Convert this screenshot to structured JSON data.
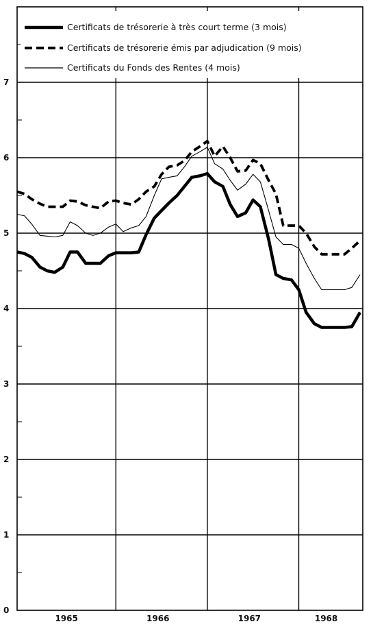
{
  "chart_data": {
    "type": "line",
    "title": "",
    "xlabel": "",
    "ylabel": "",
    "ylim": [
      0,
      7
    ],
    "y_ticks": [
      0,
      1,
      2,
      3,
      4,
      5,
      6,
      7
    ],
    "x_range": [
      1964.92,
      1968.42
    ],
    "x_tick_labels": [
      "1965",
      "1966",
      "1967",
      "1968"
    ],
    "x_tick_positions": [
      1965.5,
      1966.5,
      1967.5,
      1968.5
    ],
    "grid": true,
    "legend_placement": "top-left",
    "series": [
      {
        "name": "Certificats de trésorerie à très court terme (3 mois)",
        "style": "solid-thick",
        "color": "#000000",
        "points": [
          [
            1964.92,
            4.75
          ],
          [
            1965.0,
            4.73
          ],
          [
            1965.08,
            4.68
          ],
          [
            1965.17,
            4.55
          ],
          [
            1965.25,
            4.5
          ],
          [
            1965.33,
            4.48
          ],
          [
            1965.42,
            4.55
          ],
          [
            1965.5,
            4.75
          ],
          [
            1965.58,
            4.75
          ],
          [
            1965.67,
            4.6
          ],
          [
            1965.75,
            4.6
          ],
          [
            1965.83,
            4.6
          ],
          [
            1965.92,
            4.7
          ],
          [
            1966.0,
            4.74
          ],
          [
            1966.08,
            4.74
          ],
          [
            1966.17,
            4.74
          ],
          [
            1966.25,
            4.75
          ],
          [
            1966.33,
            4.98
          ],
          [
            1966.42,
            5.2
          ],
          [
            1966.5,
            5.3
          ],
          [
            1966.58,
            5.4
          ],
          [
            1966.67,
            5.5
          ],
          [
            1966.75,
            5.62
          ],
          [
            1966.83,
            5.74
          ],
          [
            1966.92,
            5.76
          ],
          [
            1967.0,
            5.79
          ],
          [
            1967.08,
            5.68
          ],
          [
            1967.17,
            5.62
          ],
          [
            1967.25,
            5.38
          ],
          [
            1967.33,
            5.22
          ],
          [
            1967.42,
            5.27
          ],
          [
            1967.5,
            5.44
          ],
          [
            1967.58,
            5.35
          ],
          [
            1967.67,
            4.92
          ],
          [
            1967.75,
            4.45
          ],
          [
            1967.83,
            4.4
          ],
          [
            1967.92,
            4.38
          ],
          [
            1968.0,
            4.25
          ],
          [
            1968.08,
            3.95
          ],
          [
            1968.17,
            3.8
          ],
          [
            1968.25,
            3.75
          ],
          [
            1968.33,
            3.75
          ],
          [
            1968.42,
            3.75
          ],
          [
            1968.5,
            3.75
          ],
          [
            1968.58,
            3.76
          ],
          [
            1968.67,
            3.95
          ]
        ]
      },
      {
        "name": "Certificats de trésorerie émis par adjudication (9 mois)",
        "style": "dashed-thick",
        "color": "#000000",
        "points": [
          [
            1964.92,
            5.55
          ],
          [
            1965.0,
            5.52
          ],
          [
            1965.08,
            5.45
          ],
          [
            1965.17,
            5.39
          ],
          [
            1965.25,
            5.35
          ],
          [
            1965.33,
            5.35
          ],
          [
            1965.42,
            5.35
          ],
          [
            1965.5,
            5.43
          ],
          [
            1965.58,
            5.42
          ],
          [
            1965.67,
            5.37
          ],
          [
            1965.75,
            5.35
          ],
          [
            1965.83,
            5.33
          ],
          [
            1965.92,
            5.42
          ],
          [
            1966.0,
            5.43
          ],
          [
            1966.08,
            5.4
          ],
          [
            1966.17,
            5.38
          ],
          [
            1966.25,
            5.45
          ],
          [
            1966.33,
            5.55
          ],
          [
            1966.42,
            5.62
          ],
          [
            1966.5,
            5.78
          ],
          [
            1966.58,
            5.88
          ],
          [
            1966.67,
            5.9
          ],
          [
            1966.75,
            5.96
          ],
          [
            1966.83,
            6.08
          ],
          [
            1966.92,
            6.15
          ],
          [
            1967.0,
            6.22
          ],
          [
            1967.08,
            6.02
          ],
          [
            1967.17,
            6.15
          ],
          [
            1967.25,
            6.0
          ],
          [
            1967.33,
            5.82
          ],
          [
            1967.42,
            5.83
          ],
          [
            1967.5,
            5.97
          ],
          [
            1967.58,
            5.92
          ],
          [
            1967.67,
            5.7
          ],
          [
            1967.75,
            5.52
          ],
          [
            1967.83,
            5.1
          ],
          [
            1967.92,
            5.1
          ],
          [
            1968.0,
            5.1
          ],
          [
            1968.08,
            5.0
          ],
          [
            1968.17,
            4.82
          ],
          [
            1968.25,
            4.72
          ],
          [
            1968.33,
            4.72
          ],
          [
            1968.42,
            4.72
          ],
          [
            1968.5,
            4.72
          ],
          [
            1968.58,
            4.8
          ],
          [
            1968.67,
            4.9
          ]
        ]
      },
      {
        "name": "Certificats du Fonds des Rentes (4 mois)",
        "style": "solid-thin",
        "color": "#000000",
        "points": [
          [
            1964.92,
            5.25
          ],
          [
            1965.0,
            5.23
          ],
          [
            1965.08,
            5.12
          ],
          [
            1965.17,
            4.97
          ],
          [
            1965.25,
            4.96
          ],
          [
            1965.33,
            4.95
          ],
          [
            1965.42,
            4.97
          ],
          [
            1965.5,
            5.15
          ],
          [
            1965.58,
            5.1
          ],
          [
            1965.67,
            5.0
          ],
          [
            1965.75,
            4.97
          ],
          [
            1965.83,
            5.0
          ],
          [
            1965.92,
            5.08
          ],
          [
            1966.0,
            5.12
          ],
          [
            1966.08,
            5.02
          ],
          [
            1966.17,
            5.07
          ],
          [
            1966.25,
            5.1
          ],
          [
            1966.33,
            5.22
          ],
          [
            1966.42,
            5.5
          ],
          [
            1966.5,
            5.72
          ],
          [
            1966.58,
            5.74
          ],
          [
            1966.67,
            5.76
          ],
          [
            1966.75,
            5.88
          ],
          [
            1966.83,
            6.02
          ],
          [
            1966.92,
            6.08
          ],
          [
            1967.0,
            6.14
          ],
          [
            1967.08,
            5.92
          ],
          [
            1967.17,
            5.85
          ],
          [
            1967.25,
            5.7
          ],
          [
            1967.33,
            5.57
          ],
          [
            1967.42,
            5.65
          ],
          [
            1967.5,
            5.78
          ],
          [
            1967.58,
            5.68
          ],
          [
            1967.67,
            5.3
          ],
          [
            1967.75,
            4.95
          ],
          [
            1967.83,
            4.85
          ],
          [
            1967.92,
            4.85
          ],
          [
            1968.0,
            4.8
          ],
          [
            1968.08,
            4.6
          ],
          [
            1968.17,
            4.4
          ],
          [
            1968.25,
            4.25
          ],
          [
            1968.33,
            4.25
          ],
          [
            1968.42,
            4.25
          ],
          [
            1968.5,
            4.25
          ],
          [
            1968.58,
            4.28
          ],
          [
            1968.67,
            4.45
          ]
        ]
      }
    ]
  }
}
